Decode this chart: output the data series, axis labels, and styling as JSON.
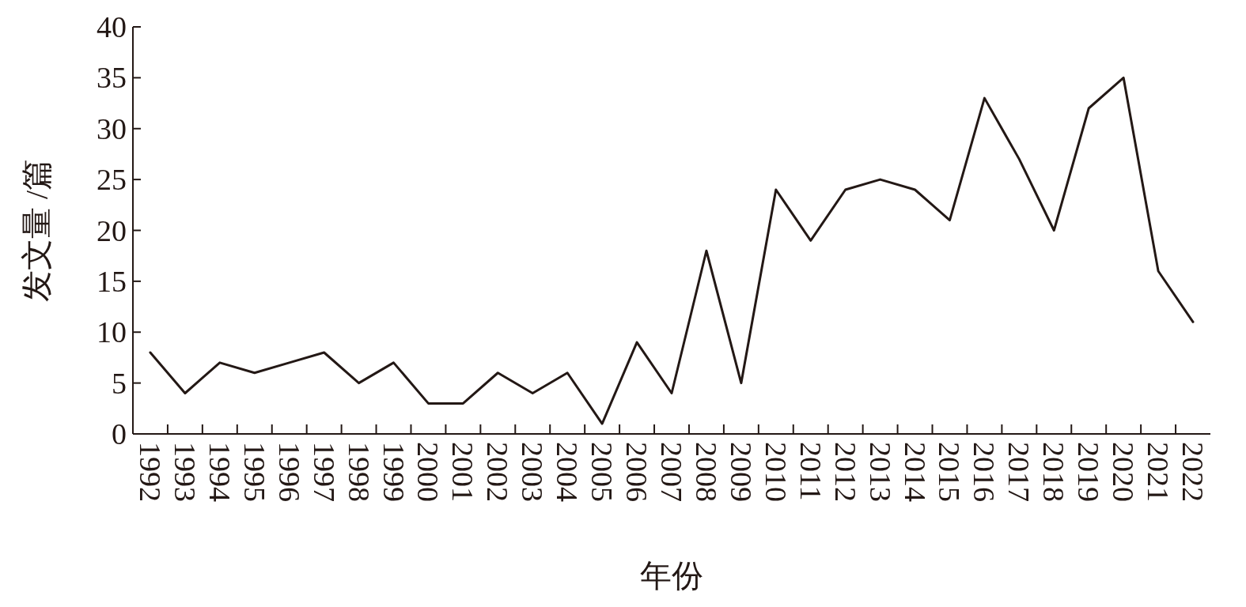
{
  "chart_data": {
    "type": "line",
    "xlabel": "年份",
    "ylabel": "发文量 /篇",
    "categories": [
      "1992",
      "1993",
      "1994",
      "1995",
      "1996",
      "1997",
      "1998",
      "1999",
      "2000",
      "2001",
      "2002",
      "2003",
      "2004",
      "2005",
      "2006",
      "2007",
      "2008",
      "2009",
      "2010",
      "2011",
      "2012",
      "2013",
      "2014",
      "2015",
      "2016",
      "2017",
      "2018",
      "2019",
      "2020",
      "2021",
      "2022"
    ],
    "series": [
      {
        "color": "#231815",
        "values": [
          8,
          4,
          7,
          6,
          7,
          8,
          5,
          7,
          3,
          3,
          6,
          4,
          6,
          1,
          9,
          4,
          18,
          5,
          24,
          19,
          24,
          25,
          24,
          21,
          33,
          27,
          20,
          32,
          35,
          16,
          11
        ]
      }
    ],
    "ylim": [
      0,
      40
    ],
    "yticks": [
      0,
      5,
      10,
      15,
      20,
      25,
      30,
      35,
      40
    ],
    "grid": false,
    "marker": "none",
    "line_style": "solid"
  }
}
